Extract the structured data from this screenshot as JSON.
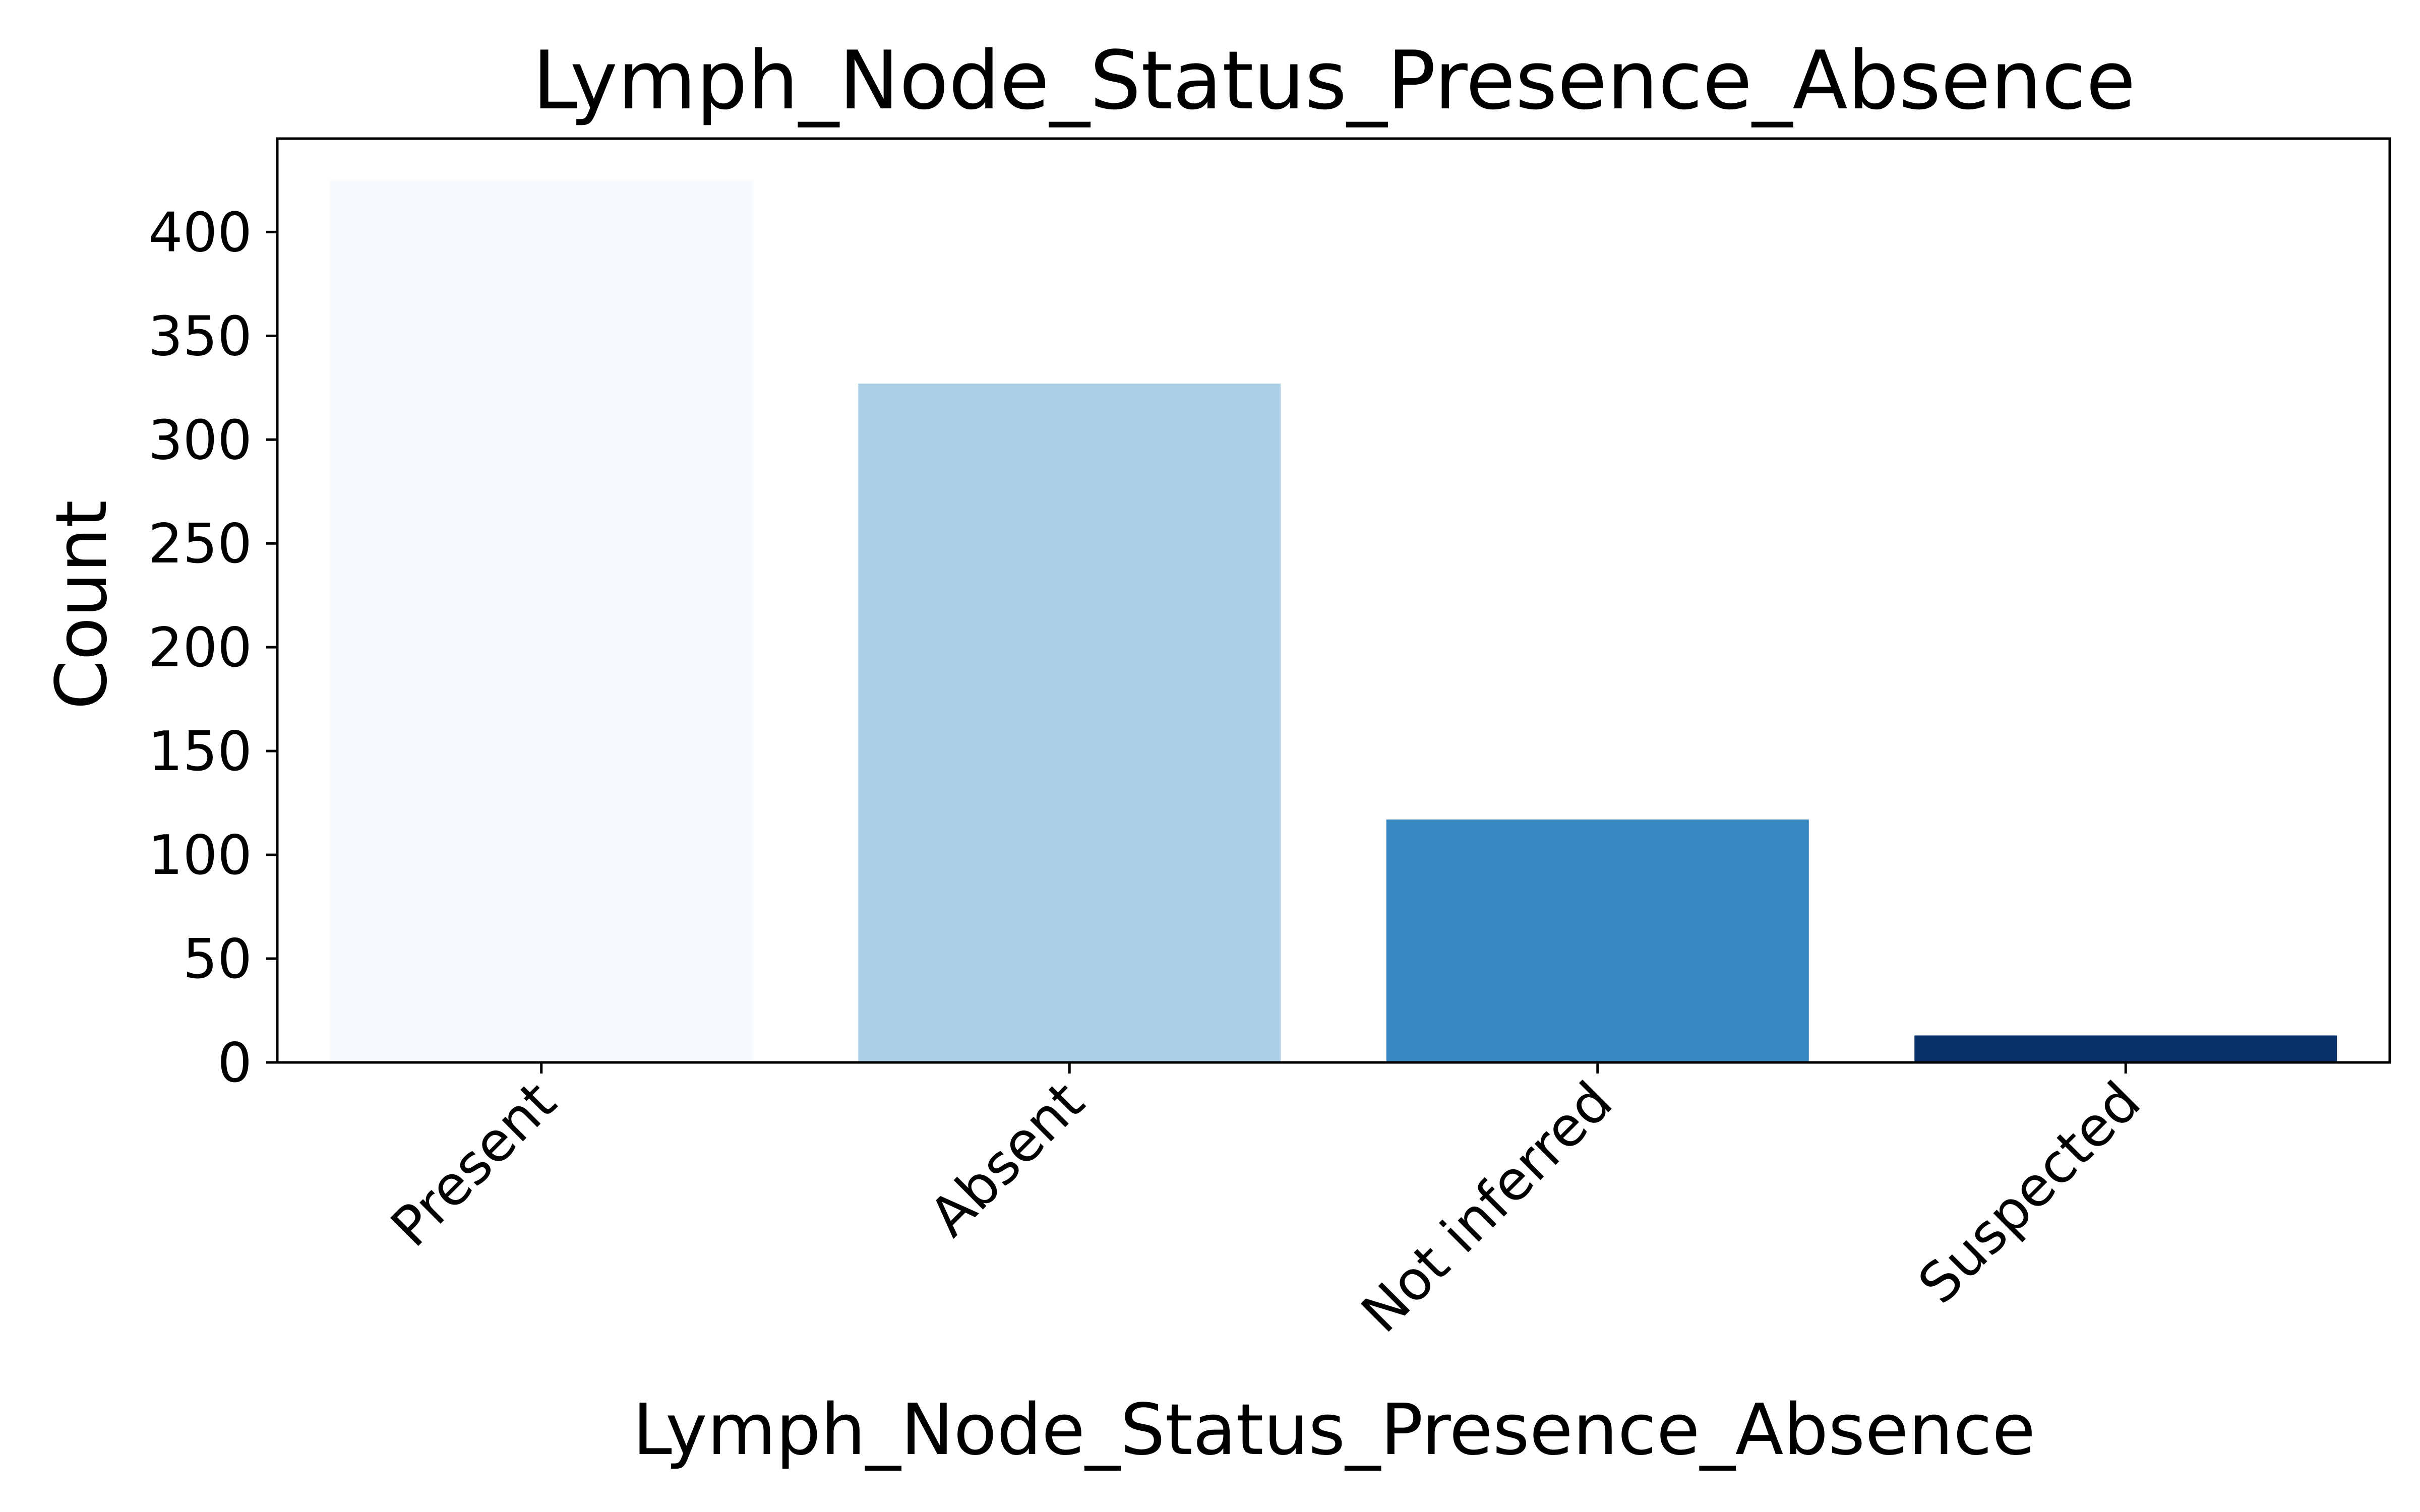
{
  "chart_data": {
    "type": "bar",
    "title": "Lymph_Node_Status_Presence_Absence",
    "xlabel": "Lymph_Node_Status_Presence_Absence",
    "ylabel": "Count",
    "categories": [
      "Present",
      "Absent",
      "Not inferred",
      "Suspected"
    ],
    "values": [
      425,
      327,
      117,
      13
    ],
    "bar_colors": [
      "#f7fbff",
      "#abcfe5",
      "#3787c0",
      "#08306b"
    ],
    "ylim": [
      0,
      445
    ],
    "yticks": [
      0,
      50,
      100,
      150,
      200,
      250,
      300,
      350,
      400
    ],
    "grid": false,
    "legend": "none"
  }
}
